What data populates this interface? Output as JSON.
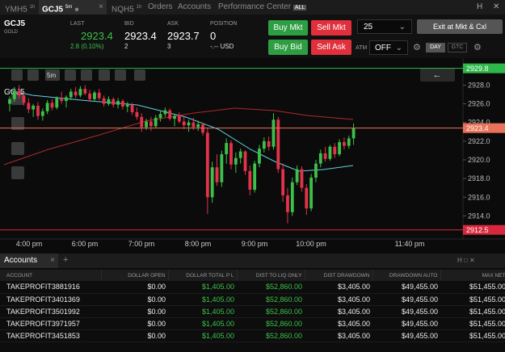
{
  "tabs": [
    {
      "name": "YMH5",
      "interval": "1h"
    },
    {
      "name": "GCJ5",
      "interval": "5m"
    },
    {
      "name": "NQH5",
      "interval": "1h"
    },
    {
      "name": "Orders"
    },
    {
      "name": "Accounts"
    },
    {
      "name": "Performance Center",
      "badge": "ALL"
    }
  ],
  "quote": {
    "symbol": "GCJ5",
    "name": "GOLD",
    "last_label": "LAST",
    "last": 2923.4,
    "change": "2.8 (0.10%)",
    "bid_label": "BID",
    "bid": 2923.4,
    "bid_size": 2,
    "ask_label": "ASK",
    "ask": 2923.7,
    "ask_size": 3,
    "position_label": "POSITION",
    "position": 0,
    "position_value": "-.-- USD"
  },
  "controls": {
    "buy_mkt": "Buy Mkt",
    "sell_mkt": "Sell Mkt",
    "buy_bid": "Buy Bid",
    "sell_ask": "Sell Ask",
    "quantity": 25,
    "exit": "Exit at Mkt & Cxl",
    "atm_label": "ATM",
    "atm": "OFF",
    "day": "DAY",
    "gtc": "GTC"
  },
  "chart": {
    "symbol": "GCJ5",
    "interval": "5m",
    "ylim": [
      2911.7,
      2930.2
    ],
    "yticks": [
      {
        "value": 2914,
        "label": "2914.0"
      },
      {
        "value": 2916,
        "label": "2916.0"
      },
      {
        "value": 2918,
        "label": "2918.0"
      },
      {
        "value": 2920,
        "label": "2920.0"
      },
      {
        "value": 2922,
        "label": "2922.0"
      },
      {
        "value": 2924,
        "label": "2924.0"
      },
      {
        "value": 2926,
        "label": "2926.0"
      },
      {
        "value": 2928,
        "label": "2928.0"
      }
    ],
    "levels": [
      {
        "value": 2929.8,
        "color": "#2fb84a"
      },
      {
        "value": 2923.4,
        "color": "#e8735a"
      },
      {
        "value": 2912.5,
        "color": "#d8283e"
      }
    ],
    "time_labels": [
      "4:00 pm",
      "6:00 pm",
      "7:00 pm",
      "8:00 pm",
      "9:00 pm",
      "10:00 pm",
      "11:40 pm"
    ],
    "up_color": "#3cc04a",
    "down_color": "#e2334a",
    "candles": [
      [
        2926.0,
        2926.8,
        2925.2,
        2926.5
      ],
      [
        2926.5,
        2927.8,
        2926.2,
        2927.4
      ],
      [
        2927.4,
        2928.0,
        2926.6,
        2926.9
      ],
      [
        2926.9,
        2927.2,
        2925.8,
        2926.1
      ],
      [
        2926.1,
        2926.6,
        2925.0,
        2925.4
      ],
      [
        2925.4,
        2926.0,
        2924.6,
        2925.8
      ],
      [
        2925.8,
        2926.2,
        2924.3,
        2924.7
      ],
      [
        2924.7,
        2925.5,
        2924.2,
        2925.2
      ],
      [
        2925.2,
        2926.4,
        2924.9,
        2926.1
      ],
      [
        2926.1,
        2926.5,
        2925.3,
        2925.6
      ],
      [
        2925.6,
        2926.8,
        2925.4,
        2926.6
      ],
      [
        2926.6,
        2927.3,
        2926.0,
        2926.3
      ],
      [
        2926.3,
        2926.9,
        2925.6,
        2926.7
      ],
      [
        2926.7,
        2927.6,
        2926.4,
        2927.3
      ],
      [
        2927.3,
        2927.8,
        2926.6,
        2926.9
      ],
      [
        2926.9,
        2927.9,
        2926.7,
        2927.6
      ],
      [
        2927.6,
        2928.0,
        2926.9,
        2927.1
      ],
      [
        2927.1,
        2927.5,
        2926.2,
        2926.5
      ],
      [
        2926.5,
        2927.4,
        2926.3,
        2927.2
      ],
      [
        2927.2,
        2927.6,
        2926.4,
        2926.6
      ],
      [
        2926.6,
        2926.9,
        2925.7,
        2926.0
      ],
      [
        2926.0,
        2926.8,
        2925.8,
        2926.5
      ],
      [
        2926.5,
        2926.7,
        2925.6,
        2925.9
      ],
      [
        2925.9,
        2926.6,
        2925.5,
        2926.3
      ],
      [
        2926.3,
        2926.5,
        2925.4,
        2925.7
      ],
      [
        2925.7,
        2926.2,
        2925.1,
        2925.9
      ],
      [
        2925.9,
        2926.1,
        2924.8,
        2925.1
      ],
      [
        2925.1,
        2925.6,
        2924.3,
        2924.6
      ],
      [
        2924.6,
        2925.0,
        2923.0,
        2923.5
      ],
      [
        2923.5,
        2924.4,
        2923.2,
        2924.1
      ],
      [
        2924.1,
        2924.6,
        2923.1,
        2923.6
      ],
      [
        2923.6,
        2924.8,
        2923.4,
        2924.5
      ],
      [
        2924.5,
        2925.2,
        2924.1,
        2924.9
      ],
      [
        2924.9,
        2925.6,
        2924.6,
        2925.3
      ],
      [
        2925.3,
        2925.5,
        2924.2,
        2924.4
      ],
      [
        2924.4,
        2924.9,
        2923.6,
        2924.7
      ],
      [
        2924.7,
        2925.1,
        2923.9,
        2924.1
      ],
      [
        2924.1,
        2924.6,
        2923.3,
        2923.7
      ],
      [
        2923.7,
        2924.3,
        2923.0,
        2924.0
      ],
      [
        2924.0,
        2924.5,
        2923.2,
        2923.5
      ],
      [
        2923.5,
        2924.2,
        2923.1,
        2923.8
      ],
      [
        2923.8,
        2924.0,
        2922.6,
        2922.9
      ],
      [
        2922.9,
        2923.4,
        2914.2,
        2916.0
      ],
      [
        2916.0,
        2919.8,
        2915.4,
        2919.2
      ],
      [
        2919.2,
        2920.6,
        2917.2,
        2917.6
      ],
      [
        2917.6,
        2921.0,
        2917.1,
        2920.6
      ],
      [
        2920.6,
        2922.3,
        2919.6,
        2921.8
      ],
      [
        2921.8,
        2922.1,
        2919.0,
        2919.5
      ],
      [
        2919.5,
        2920.8,
        2918.6,
        2920.2
      ],
      [
        2920.2,
        2921.2,
        2919.6,
        2920.9
      ],
      [
        2920.9,
        2921.0,
        2918.4,
        2918.8
      ],
      [
        2918.8,
        2919.4,
        2916.2,
        2916.8
      ],
      [
        2916.8,
        2919.9,
        2916.5,
        2919.6
      ],
      [
        2919.6,
        2921.6,
        2919.2,
        2921.2
      ],
      [
        2921.2,
        2922.4,
        2920.8,
        2922.0
      ],
      [
        2922.0,
        2922.5,
        2921.0,
        2921.4
      ],
      [
        2921.4,
        2925.0,
        2921.1,
        2924.3
      ],
      [
        2924.3,
        2924.6,
        2918.6,
        2919.0
      ],
      [
        2919.0,
        2919.6,
        2915.5,
        2916.2
      ],
      [
        2916.2,
        2917.0,
        2913.2,
        2914.4
      ],
      [
        2914.4,
        2918.1,
        2914.0,
        2917.6
      ],
      [
        2917.6,
        2919.4,
        2917.3,
        2919.0
      ],
      [
        2919.0,
        2919.3,
        2916.6,
        2917.0
      ],
      [
        2917.0,
        2917.4,
        2914.1,
        2914.8
      ],
      [
        2914.8,
        2918.5,
        2914.5,
        2918.1
      ],
      [
        2918.1,
        2920.0,
        2917.6,
        2919.6
      ],
      [
        2919.6,
        2921.1,
        2919.2,
        2920.7
      ],
      [
        2920.7,
        2921.4,
        2919.8,
        2920.1
      ],
      [
        2920.1,
        2921.6,
        2919.9,
        2921.4
      ],
      [
        2921.4,
        2921.8,
        2920.2,
        2920.6
      ],
      [
        2920.6,
        2922.2,
        2920.4,
        2921.9
      ],
      [
        2921.9,
        2922.4,
        2921.1,
        2921.5
      ],
      [
        2921.5,
        2922.6,
        2921.2,
        2922.3
      ],
      [
        2922.3,
        2923.9,
        2921.6,
        2923.4
      ]
    ]
  },
  "accounts": {
    "tab": "Accounts",
    "columns": [
      "ACCOUNT",
      "DOLLAR OPEN",
      "DOLLAR TOTAL P L",
      "DIST TO LIQ ONLY",
      "DIST DRAWDOWN",
      "DRAWDOWN AUTO",
      "MAX NET"
    ],
    "rows": [
      [
        "TAKEPROFIT3881916",
        "$0.00",
        "$1,405.00",
        "$52,860.00",
        "$3,405.00",
        "$49,455.00",
        "$51,455.00"
      ],
      [
        "TAKEPROFIT3401369",
        "$0.00",
        "$1,405.00",
        "$52,860.00",
        "$3,405.00",
        "$49,455.00",
        "$51,455.00"
      ],
      [
        "TAKEPROFIT3501992",
        "$0.00",
        "$1,405.00",
        "$52,860.00",
        "$3,405.00",
        "$49,455.00",
        "$51,455.00"
      ],
      [
        "TAKEPROFIT3971957",
        "$0.00",
        "$1,405.00",
        "$52,860.00",
        "$3,405.00",
        "$49,455.00",
        "$51,455.00"
      ],
      [
        "TAKEPROFIT3451853",
        "$0.00",
        "$1,405.00",
        "$52,860.00",
        "$3,405.00",
        "$49,455.00",
        "$51,455.00"
      ]
    ]
  }
}
